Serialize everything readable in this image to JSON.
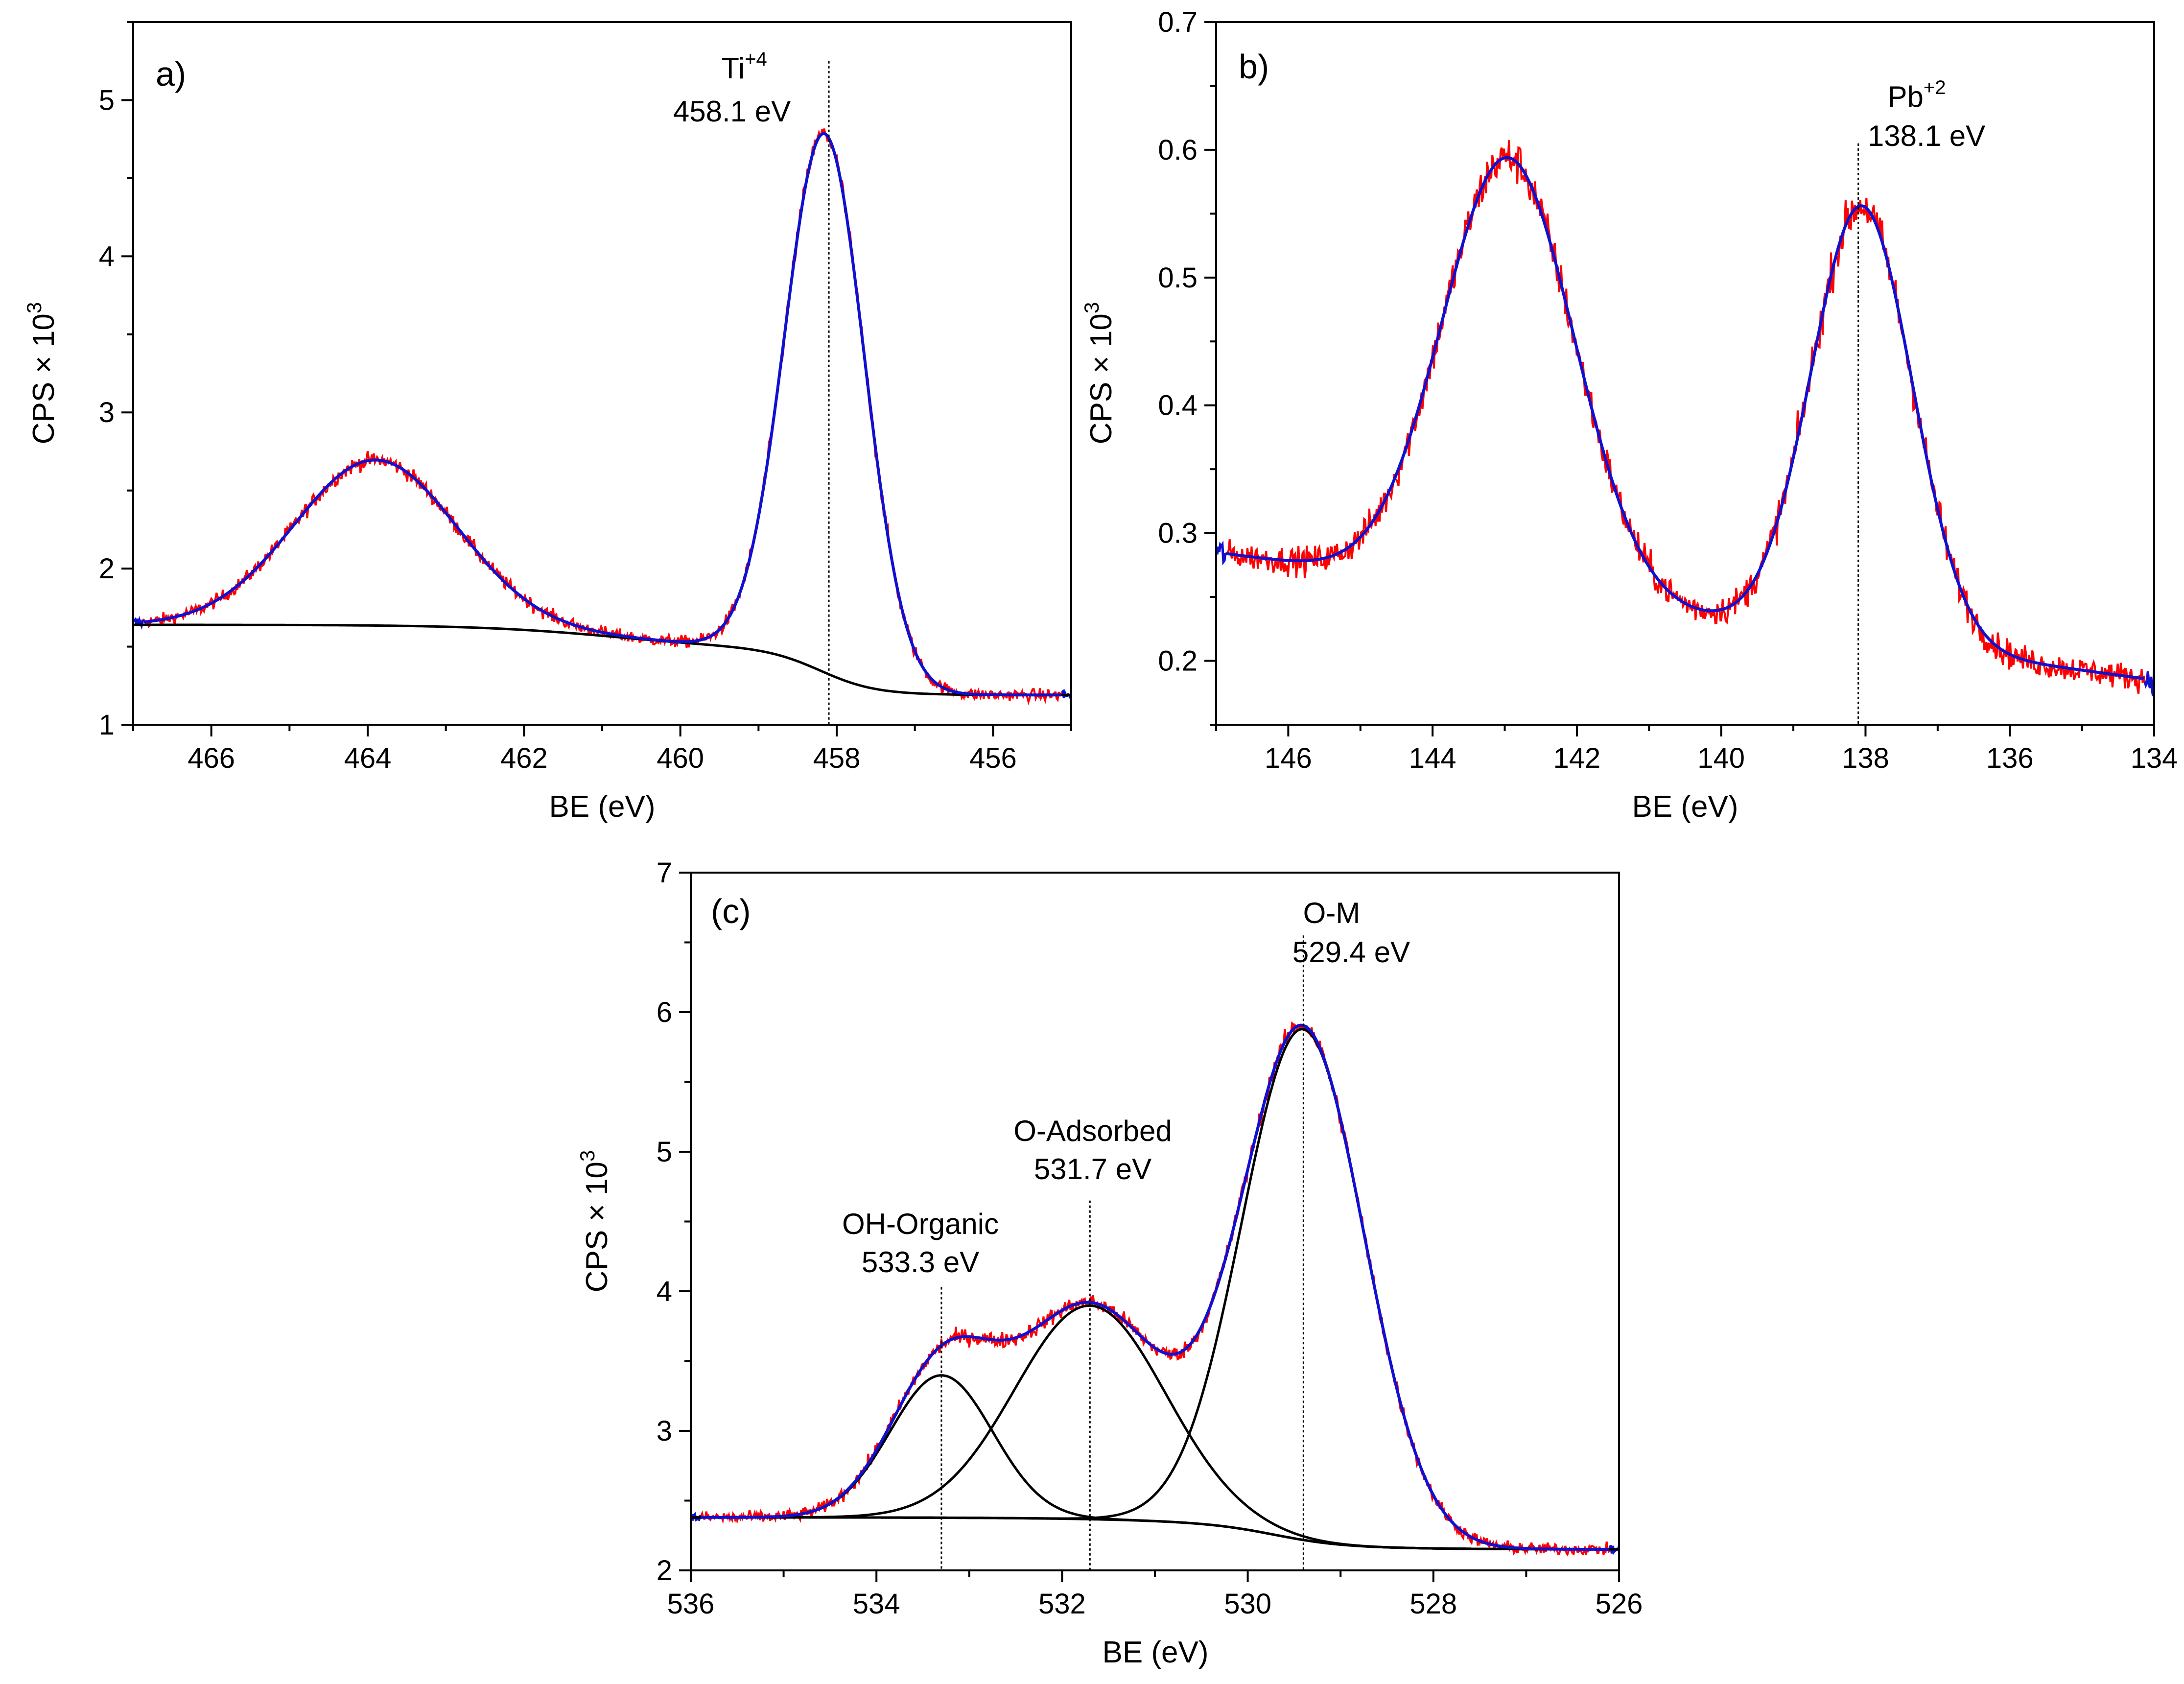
{
  "colors": {
    "data": "#ff0000",
    "fit": "#1010d0",
    "component": "#000000"
  },
  "chart_data": [
    {
      "type": "line",
      "panel_label": "a)",
      "xlabel": "BE (eV)",
      "ylabel": "CPS",
      "ylabel_exp": "3",
      "xlim": [
        467,
        455
      ],
      "ylim": [
        1,
        5.5
      ],
      "xticks": [
        466,
        464,
        462,
        460,
        458,
        456
      ],
      "yticks": [
        1,
        2,
        3,
        4,
        5
      ],
      "components": [
        {
          "name": "background",
          "kind": "shirley",
          "start": 1.64,
          "end": 1.19,
          "mid": 460.8,
          "knee": 458.2
        }
      ],
      "peaks": [
        {
          "center": 463.9,
          "height": 1.06,
          "fwhm": 2.45
        },
        {
          "center": 458.15,
          "height": 3.45,
          "fwhm": 1.2
        }
      ],
      "annotations": [
        {
          "x": 458.1,
          "top": 5.25,
          "element": "Ti",
          "charge": "+4",
          "energy": "458.1 eV"
        }
      ]
    },
    {
      "type": "line",
      "panel_label": "b)",
      "xlabel": "BE (eV)",
      "ylabel": "CPS",
      "ylabel_exp": "3",
      "xlim": [
        147,
        134
      ],
      "ylim": [
        0.15,
        0.7
      ],
      "xticks": [
        146,
        144,
        142,
        140,
        138,
        136,
        134
      ],
      "yticks": [
        0.2,
        0.3,
        0.4,
        0.5,
        0.6,
        0.7
      ],
      "components": [
        {
          "name": "background",
          "kind": "linear",
          "start": 0.285,
          "end": 0.185
        }
      ],
      "peaks": [
        {
          "center": 142.95,
          "height": 0.34,
          "fwhm": 2.15
        },
        {
          "center": 138.05,
          "height": 0.34,
          "fwhm": 1.65
        }
      ],
      "annotations": [
        {
          "x": 138.1,
          "top": 0.605,
          "element": "Pb",
          "charge": "+2",
          "energy": "138.1 eV"
        }
      ]
    },
    {
      "type": "line",
      "panel_label": "(c)",
      "xlabel": "BE (eV)",
      "ylabel": "CPS",
      "ylabel_exp": "3",
      "xlim": [
        536,
        526
      ],
      "ylim": [
        2,
        7
      ],
      "xticks": [
        536,
        534,
        532,
        530,
        528,
        526
      ],
      "yticks": [
        2,
        3,
        4,
        5,
        6,
        7
      ],
      "components": [
        {
          "name": "background",
          "kind": "shirley",
          "start": 2.38,
          "end": 2.15,
          "mid": 530.2,
          "knee": 529.7
        }
      ],
      "peaks": [
        {
          "center": 533.3,
          "height": 1.02,
          "fwhm": 1.3
        },
        {
          "center": 531.7,
          "height": 1.53,
          "fwhm": 1.9
        },
        {
          "center": 529.4,
          "height": 3.66,
          "fwhm": 1.55
        }
      ],
      "annotations": [
        {
          "x": 533.3,
          "top": 4.03,
          "label": "OH-Organic",
          "energy": "533.3 eV"
        },
        {
          "x": 531.7,
          "top": 4.65,
          "label": "O-Adsorbed",
          "energy": "531.7 eV"
        },
        {
          "x": 529.4,
          "top": 6.55,
          "label": "O-M",
          "energy": "529.4 eV"
        }
      ]
    }
  ]
}
